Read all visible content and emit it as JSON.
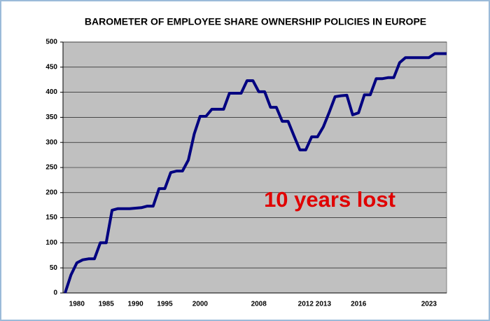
{
  "chart_data": {
    "type": "line",
    "title": "BAROMETER OF EMPLOYEE SHARE OWNERSHIP POLICIES IN EUROPE",
    "annotation": "10 years lost",
    "categories": [
      null,
      null,
      "1980",
      null,
      null,
      null,
      null,
      "1985",
      null,
      null,
      null,
      null,
      "1990",
      null,
      null,
      null,
      null,
      "1995",
      null,
      null,
      null,
      null,
      null,
      "2000",
      null,
      null,
      null,
      null,
      null,
      null,
      null,
      null,
      null,
      "2008",
      null,
      null,
      null,
      null,
      null,
      null,
      null,
      "2012",
      null,
      null,
      "2013",
      null,
      null,
      null,
      null,
      null,
      "2016",
      null,
      null,
      null,
      null,
      null,
      null,
      null,
      null,
      null,
      null,
      null,
      "2023",
      null,
      null,
      null
    ],
    "series": [
      {
        "color": "#000080",
        "values": [
          0,
          36,
          60,
          66,
          68,
          68,
          100,
          100,
          165,
          168,
          168,
          168,
          169,
          170,
          173,
          173,
          208,
          208,
          240,
          243,
          243,
          265,
          317,
          352,
          352,
          366,
          366,
          366,
          398,
          398,
          398,
          423,
          423,
          401,
          401,
          370,
          370,
          342,
          342,
          313,
          285,
          285,
          311,
          311,
          331,
          360,
          391,
          393,
          394,
          355,
          359,
          395,
          395,
          427,
          427,
          429,
          429,
          459,
          469,
          469,
          469,
          469,
          469,
          477,
          477,
          477
        ]
      }
    ],
    "ylim": [
      0,
      500
    ],
    "yticks": [
      0,
      50,
      100,
      150,
      200,
      250,
      300,
      350,
      400,
      450,
      500
    ],
    "grid": true,
    "plot_color": "#c0c0c0",
    "annotation_color": "#e00000"
  }
}
